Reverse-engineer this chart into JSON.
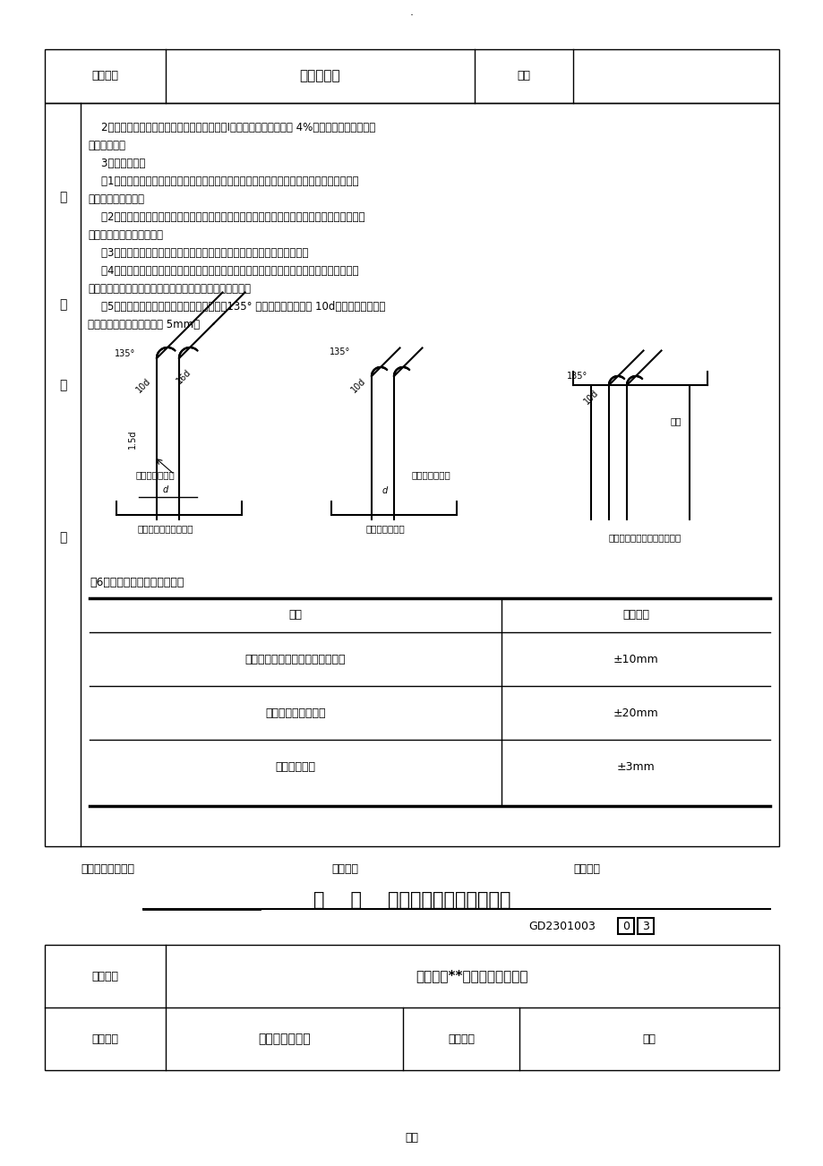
{
  "page_bg": "#ffffff",
  "top_header": {
    "col1": "交底部位",
    "col2": "基础及主体",
    "col3": "日期",
    "col4": ""
  },
  "main_content_lines": [
    "    2、钢筋调直采用钢筋调直机，钢筋调直时，Ⅰ级钢筋冷拉率不宜大于 4%，钢筋调直后应平直、",
    "无局部弯曲。",
    "    3、钢筋下料：",
    "    （1）下料原则：同规格钢筋根据不同长度，长短搭配，统筹配料；先断长料，后断短料，减",
    "少短头、减少损耗。",
    "    （2）钢筋切断时应核对配料单，并进行钢筋试弯，检查料表尺寸与实际成型的尺寸是否相符，",
    "无误后方可大量切断成型。",
    "    （3）在工作台设置控制下料长度的限位挡板，精确控制钢筋的下料长度。",
    "    （4）钢筋切断时，钢筋和切断机刀口要成垂线，并严格执行操作规程，确保安全。在切断过",
    "程中，如发现钢筋有劈裂、缩头或严重的弯头，必须切除。",
    "    （5）箍筋成型时，应先做样品。弯钩要求：135° 弯钩的平直段长度为 10d，且两端弯钩成等",
    "号平行，长度误差不得超过 5mm。"
  ],
  "left_labels": [
    "交",
    "底",
    "内",
    "容"
  ],
  "table_title": "（6）钢筋加工允许偏差要求：",
  "table_headers": [
    "项目",
    "允许偏差"
  ],
  "table_rows": [
    [
      "受力钢筋顺长度方向全长的净尺寸",
      "±10mm"
    ],
    [
      "弯起钢筋的弯折位置",
      "±20mm"
    ],
    [
      "箍筋内净尺寸",
      "±3mm"
    ]
  ],
  "signature_line": "专业技术负责人：                    交底人：                    接受人：",
  "title_underline": "钢    筋    分项工程质量技术交底卡",
  "doc_number": "GD2301003",
  "doc_num_boxes": [
    "0",
    "3"
  ],
  "bottom_table": {
    "row1": [
      "施工单位",
      "中国建筑**（集团）有限公司"
    ],
    "row2": [
      "工程名称",
      "佳兆业可园二期",
      "分部工程",
      "钢筋"
    ]
  },
  "footer": "精品"
}
